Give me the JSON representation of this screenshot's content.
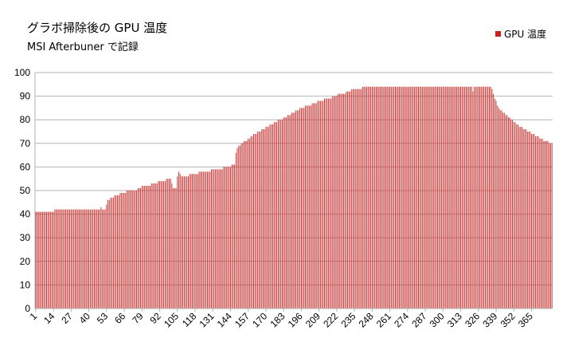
{
  "chart_data": {
    "type": "bar",
    "title": "グラボ掃除後の GPU 温度",
    "subtitle": "MSI Afterbuner で記録",
    "xlabel": "",
    "ylabel": "",
    "ylim": [
      0,
      100
    ],
    "yticks": [
      0,
      10,
      20,
      30,
      40,
      50,
      60,
      70,
      80,
      90,
      100
    ],
    "grid": true,
    "legend_position": "top-right",
    "x_start": 1,
    "x_count": 376,
    "x_tick_labels": [
      "1",
      "14",
      "27",
      "40",
      "53",
      "66",
      "79",
      "92",
      "105",
      "118",
      "131",
      "144",
      "157",
      "170",
      "183",
      "196",
      "209",
      "222",
      "235",
      "248",
      "261",
      "274",
      "287",
      "300",
      "313",
      "326",
      "339",
      "352",
      "365"
    ],
    "series": [
      {
        "name": "GPU 温度",
        "color": "#c9211e",
        "values": [
          41,
          41,
          41,
          41,
          41,
          41,
          41,
          41,
          41,
          41,
          41,
          41,
          41,
          41,
          42,
          42,
          42,
          42,
          42,
          42,
          42,
          42,
          42,
          42,
          42,
          42,
          42,
          42,
          42,
          42,
          42,
          42,
          42,
          42,
          42,
          42,
          42,
          42,
          42,
          42,
          42,
          42,
          42,
          42,
          42,
          42,
          42,
          42,
          43,
          42,
          42,
          42,
          44,
          46,
          46,
          47,
          47,
          47,
          48,
          48,
          48,
          48,
          49,
          49,
          49,
          49,
          49,
          50,
          50,
          50,
          50,
          50,
          50,
          50,
          50,
          51,
          51,
          51,
          52,
          52,
          52,
          52,
          52,
          52,
          52,
          53,
          53,
          53,
          53,
          53,
          54,
          54,
          54,
          54,
          54,
          54,
          55,
          55,
          55,
          55,
          53,
          51,
          51,
          51,
          56,
          58,
          57,
          56,
          56,
          56,
          56,
          56,
          56,
          57,
          57,
          57,
          57,
          57,
          57,
          57,
          58,
          58,
          58,
          58,
          58,
          58,
          58,
          58,
          58,
          59,
          59,
          59,
          59,
          59,
          59,
          59,
          59,
          59,
          60,
          60,
          60,
          60,
          60,
          60,
          61,
          61,
          61,
          66,
          68,
          69,
          69,
          70,
          70,
          71,
          71,
          71,
          72,
          72,
          73,
          73,
          74,
          74,
          74,
          75,
          75,
          75,
          76,
          76,
          76,
          77,
          77,
          77,
          78,
          78,
          78,
          79,
          79,
          79,
          80,
          80,
          80,
          80,
          81,
          81,
          81,
          82,
          82,
          82,
          83,
          83,
          83,
          84,
          84,
          84,
          85,
          85,
          85,
          85,
          86,
          86,
          86,
          86,
          86,
          87,
          87,
          87,
          87,
          88,
          88,
          88,
          88,
          88,
          89,
          89,
          89,
          89,
          89,
          89,
          90,
          90,
          90,
          90,
          91,
          91,
          91,
          91,
          91,
          91,
          92,
          92,
          92,
          92,
          93,
          93,
          93,
          93,
          93,
          93,
          93,
          93,
          94,
          94,
          94,
          94,
          94,
          94,
          94,
          94,
          94,
          94,
          94,
          94,
          94,
          94,
          94,
          94,
          94,
          94,
          94,
          94,
          94,
          94,
          94,
          94,
          94,
          94,
          94,
          94,
          94,
          94,
          94,
          94,
          94,
          94,
          94,
          94,
          94,
          94,
          94,
          94,
          94,
          94,
          94,
          94,
          94,
          94,
          94,
          94,
          94,
          94,
          94,
          94,
          94,
          94,
          94,
          94,
          94,
          94,
          94,
          94,
          94,
          94,
          94,
          94,
          94,
          94,
          94,
          94,
          94,
          94,
          94,
          94,
          94,
          94,
          94,
          94,
          94,
          94,
          94,
          94,
          94,
          92,
          94,
          94,
          94,
          94,
          94,
          94,
          94,
          94,
          94,
          94,
          94,
          94,
          94,
          93,
          91,
          89,
          88,
          86,
          85,
          84,
          84,
          83,
          83,
          82,
          82,
          81,
          81,
          80,
          80,
          79,
          79,
          78,
          78,
          77,
          77,
          77,
          76,
          76,
          76,
          75,
          75,
          75,
          74,
          74,
          74,
          73,
          73,
          73,
          72,
          72,
          72,
          71,
          71,
          71,
          71,
          70,
          70,
          70
        ]
      }
    ]
  }
}
